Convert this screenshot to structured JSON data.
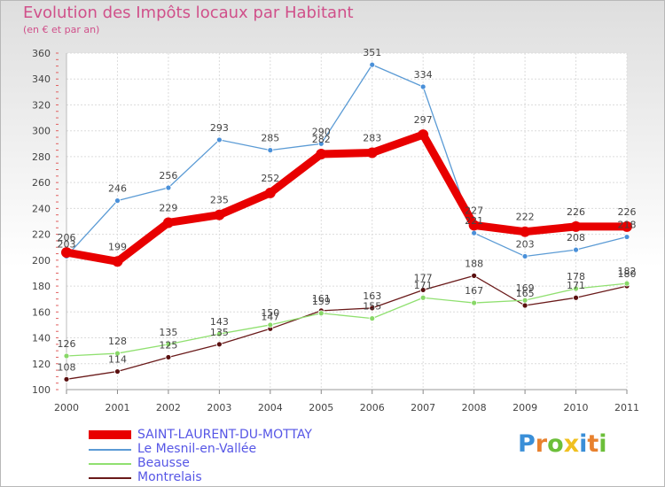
{
  "header": {
    "title": "Evolution des Impôts locaux par Habitant",
    "subtitle": "(en € et par an)"
  },
  "logo": {
    "text": "Proxiti",
    "letter_colors": [
      "#3a8fd8",
      "#e8812e",
      "#6cbf3a",
      "#f0c020",
      "#3a8fd8",
      "#e8812e",
      "#6cbf3a"
    ]
  },
  "chart_data": {
    "type": "line",
    "title": "Evolution des Impôts locaux par Habitant",
    "subtitle": "(en € et par an)",
    "xlabel": "",
    "ylabel": "",
    "x": [
      "2000",
      "2001",
      "2002",
      "2003",
      "2004",
      "2005",
      "2006",
      "2007",
      "2008",
      "2009",
      "2010",
      "2011"
    ],
    "ylim": [
      100,
      360
    ],
    "yticks": [
      "100",
      "120",
      "140",
      "160",
      "180",
      "200",
      "220",
      "240",
      "260",
      "280",
      "300",
      "320",
      "340",
      "360"
    ],
    "grid": true,
    "series": [
      {
        "name": "SAINT-LAURENT-DU-MOTTAY",
        "color": "#e80000",
        "values": [
          206,
          199,
          229,
          235,
          252,
          282,
          283,
          297,
          227,
          222,
          226,
          226
        ]
      },
      {
        "name": "Le Mesnil-en-Vallée",
        "color": "#5b9bd5",
        "values": [
          203,
          246,
          256,
          293,
          285,
          290,
          351,
          334,
          221,
          203,
          208,
          218
        ]
      },
      {
        "name": "Beausse",
        "color": "#90e070",
        "values": [
          126,
          128,
          135,
          143,
          150,
          159,
          155,
          171,
          167,
          169,
          178,
          182
        ]
      },
      {
        "name": "Montrelais",
        "color": "#6a1a1a",
        "values": [
          108,
          114,
          125,
          135,
          147,
          161,
          163,
          177,
          188,
          165,
          171,
          180
        ]
      }
    ]
  }
}
